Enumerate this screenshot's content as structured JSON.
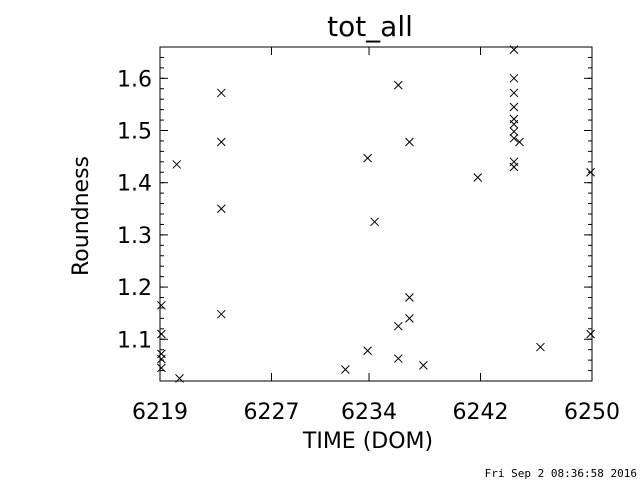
{
  "chart_data": {
    "type": "scatter",
    "title": "tot_all",
    "xlabel": "TIME (DOM)",
    "ylabel": "Roundness",
    "xlim": [
      6219,
      6250
    ],
    "ylim": [
      1.02,
      1.66
    ],
    "xtick_values": [
      6219,
      6227,
      6234,
      6242,
      6250
    ],
    "xtick_labels": [
      "6219",
      "6227",
      "6234",
      "6242",
      "6250"
    ],
    "ytick_values": [
      1.1,
      1.2,
      1.3,
      1.4,
      1.5,
      1.6
    ],
    "ytick_labels": [
      "1.1",
      "1.2",
      "1.3",
      "1.4",
      "1.5",
      "1.6"
    ],
    "grid": false,
    "marker": "x",
    "series": [
      {
        "points": [
          [
            6219.1,
            1.062
          ],
          [
            6219.1,
            1.072
          ],
          [
            6219.1,
            1.165
          ],
          [
            6219.1,
            1.11
          ],
          [
            6219.1,
            1.045
          ],
          [
            6220.4,
            1.025
          ],
          [
            6220.2,
            1.435
          ],
          [
            6223.4,
            1.572
          ],
          [
            6223.4,
            1.478
          ],
          [
            6223.4,
            1.35
          ],
          [
            6223.4,
            1.148
          ],
          [
            6232.3,
            1.042
          ],
          [
            6233.9,
            1.447
          ],
          [
            6233.9,
            1.078
          ],
          [
            6234.4,
            1.325
          ],
          [
            6236.1,
            1.587
          ],
          [
            6236.1,
            1.125
          ],
          [
            6236.1,
            1.063
          ],
          [
            6236.9,
            1.478
          ],
          [
            6236.9,
            1.18
          ],
          [
            6236.9,
            1.14
          ],
          [
            6237.9,
            1.05
          ],
          [
            6241.8,
            1.41
          ],
          [
            6244.4,
            1.655
          ],
          [
            6244.4,
            1.6
          ],
          [
            6244.4,
            1.572
          ],
          [
            6244.4,
            1.545
          ],
          [
            6244.4,
            1.522
          ],
          [
            6244.4,
            1.512
          ],
          [
            6244.4,
            1.498
          ],
          [
            6244.4,
            1.485
          ],
          [
            6244.4,
            1.44
          ],
          [
            6244.4,
            1.43
          ],
          [
            6244.8,
            1.478
          ],
          [
            6246.3,
            1.085
          ],
          [
            6249.9,
            1.42
          ],
          [
            6249.9,
            1.11
          ]
        ]
      }
    ]
  },
  "footer": {
    "timestamp": "Fri Sep  2 08:36:58 2016"
  }
}
